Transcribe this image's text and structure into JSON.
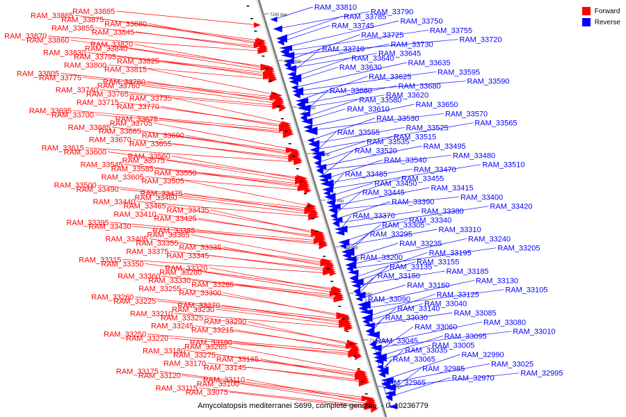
{
  "caption": "Amycolatopsis mediterranei S699, complete genome. - 0..10236779",
  "legend": [
    {
      "label": "Forward",
      "color": "#ff0000"
    },
    {
      "label": "Reverse",
      "color": "#0000ff"
    }
  ],
  "colors": {
    "forward": "#ff0000",
    "reverse": "#0000ff",
    "backbone": "#808080"
  },
  "scale_labels": [
    "7280 kbp",
    "7260 kbp",
    "7240 kbp",
    "7220 kbp",
    "7200 kbp",
    "7180 kbp",
    "7160 kbp",
    "7140 kbp",
    "7120 kbp"
  ],
  "forward_genes": [
    "RAM_33885",
    "RAM_33865",
    "RAM_33875",
    "RAM_33880",
    "RAM_33855",
    "RAM_33845",
    "RAM_33870",
    "RAM_33860",
    "RAM_33820",
    "RAM_33840",
    "RAM_33830",
    "RAM_33795",
    "RAM_33825",
    "RAM_33800",
    "RAM_33815",
    "RAM_33805",
    "RAM_33775",
    "RAM_33780",
    "RAM_33760",
    "RAM_33740",
    "RAM_33765",
    "RAM_33735",
    "RAM_33715",
    "RAM_33770",
    "RAM_33695",
    "RAM_33700",
    "RAM_33675",
    "RAM_33705",
    "RAM_33685",
    "RAM_33665",
    "RAM_33690",
    "RAM_33670",
    "RAM_33655",
    "RAM_33615",
    "RAM_33600",
    "RAM_33560",
    "RAM_33575",
    "RAM_33545",
    "RAM_33585",
    "RAM_33550",
    "RAM_33605",
    "RAM_33505",
    "RAM_33500",
    "RAM_33490",
    "RAM_33475",
    "RAM_33460",
    "RAM_33440",
    "RAM_33465",
    "RAM_33435",
    "RAM_33410",
    "RAM_33425",
    "RAM_33395",
    "RAM_33430",
    "RAM_33385",
    "RAM_33365",
    "RAM_33405",
    "RAM_33355",
    "RAM_33335",
    "RAM_33375",
    "RAM_33345",
    "RAM_33315",
    "RAM_33350",
    "RAM_33320",
    "RAM_33280",
    "RAM_33360",
    "RAM_33330",
    "RAM_33285",
    "RAM_33255",
    "RAM_33300",
    "RAM_33260",
    "RAM_33225",
    "RAM_33270",
    "RAM_33230",
    "RAM_33210",
    "RAM_33325",
    "RAM_33290",
    "RAM_33245",
    "RAM_33215",
    "RAM_33250",
    "RAM_33220",
    "RAM_33190",
    "RAM_33265",
    "RAM_33180",
    "RAM_33275",
    "RAM_33165",
    "RAM_33170",
    "RAM_33145",
    "RAM_33175",
    "RAM_33120",
    "RAM_33110",
    "RAM_33100",
    "RAM_33115",
    "RAM_33075"
  ],
  "reverse_genes": [
    "RAM_33810",
    "RAM_33790",
    "RAM_33785",
    "RAM_33750",
    "RAM_33745",
    "RAM_33755",
    "RAM_33725",
    "RAM_33720",
    "RAM_33730",
    "RAM_33710",
    "RAM_33645",
    "RAM_33640",
    "RAM_33635",
    "RAM_33630",
    "RAM_33595",
    "RAM_33625",
    "RAM_33590",
    "RAM_33680",
    "RAM_33660",
    "RAM_33620",
    "RAM_33580",
    "RAM_33650",
    "RAM_33610",
    "RAM_33570",
    "RAM_33530",
    "RAM_33565",
    "RAM_33525",
    "RAM_33555",
    "RAM_33515",
    "RAM_33535",
    "RAM_33495",
    "RAM_33520",
    "RAM_33480",
    "RAM_33540",
    "RAM_33510",
    "RAM_33470",
    "RAM_33485",
    "RAM_33455",
    "RAM_33450",
    "RAM_33415",
    "RAM_33445",
    "RAM_33400",
    "RAM_33390",
    "RAM_33420",
    "RAM_33380",
    "RAM_33370",
    "RAM_33340",
    "RAM_33305",
    "RAM_33310",
    "RAM_33295",
    "RAM_33240",
    "RAM_33235",
    "RAM_33205",
    "RAM_33195",
    "RAM_33200",
    "RAM_33155",
    "RAM_33135",
    "RAM_33185",
    "RAM_33150",
    "RAM_33130",
    "RAM_33160",
    "RAM_33105",
    "RAM_33125",
    "RAM_33090",
    "RAM_33040",
    "RAM_33140",
    "RAM_33085",
    "RAM_33030",
    "RAM_33080",
    "RAM_33060",
    "RAM_33010",
    "RAM_33095",
    "RAM_33045",
    "RAM_33005",
    "RAM_33035",
    "RAM_32990",
    "RAM_33065",
    "RAM_33025",
    "RAM_32985",
    "RAM_32995",
    "RAM_32970",
    "RAM_32965"
  ]
}
